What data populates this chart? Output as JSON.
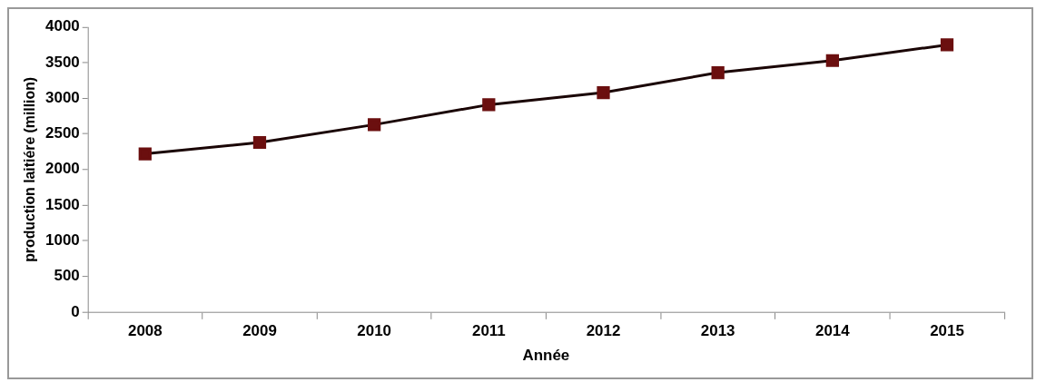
{
  "chart_data": {
    "type": "line",
    "xlabel": "Année",
    "ylabel": "production laitiére (million)",
    "categories": [
      "2008",
      "2009",
      "2010",
      "2011",
      "2012",
      "2013",
      "2014",
      "2015"
    ],
    "series": [
      {
        "color": "#6b0f0f",
        "values": [
          2220,
          2380,
          2630,
          2910,
          3080,
          3360,
          3530,
          3750
        ]
      }
    ],
    "ylim": [
      0,
      4000
    ],
    "yticks": [
      0,
      500,
      1000,
      1500,
      2000,
      2500,
      3000,
      3500,
      4000
    ],
    "grid": false,
    "legend": false,
    "marker": "square",
    "line_style": "solid"
  }
}
